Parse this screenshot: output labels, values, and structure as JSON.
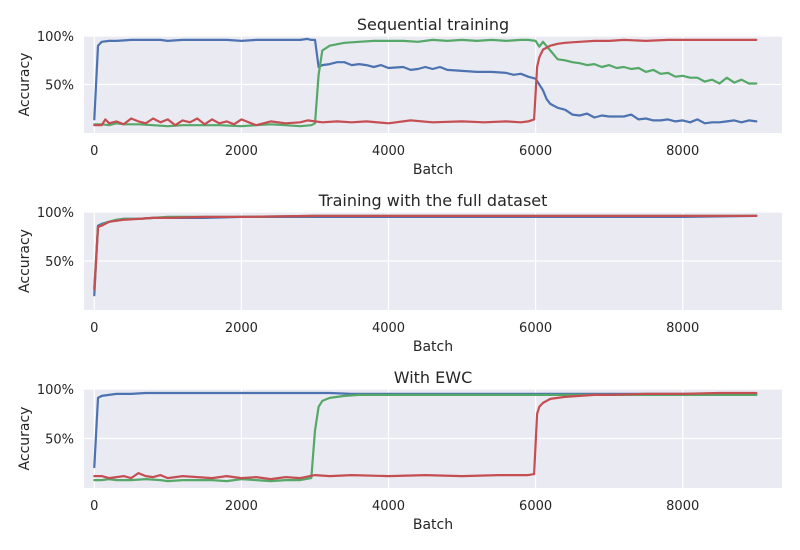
{
  "chart_data": [
    {
      "type": "line",
      "title": "Sequential training",
      "xlabel": "Batch",
      "ylabel": "Accuracy",
      "xlim": [
        -140,
        9350
      ],
      "ylim": [
        0,
        100
      ],
      "xticks": [
        0,
        2000,
        4000,
        6000,
        8000
      ],
      "yticks": [
        50,
        100
      ],
      "ytick_labels": [
        "50%",
        "100%"
      ],
      "grid": true,
      "series": [
        {
          "color": "#4c72b0",
          "x": [
            0,
            50,
            100,
            200,
            300,
            500,
            700,
            900,
            1000,
            1200,
            1500,
            1800,
            2000,
            2200,
            2500,
            2800,
            2900,
            2950,
            3000,
            3050,
            3100,
            3200,
            3300,
            3400,
            3500,
            3600,
            3700,
            3800,
            3900,
            4000,
            4200,
            4300,
            4400,
            4500,
            4600,
            4700,
            4800,
            5000,
            5200,
            5400,
            5600,
            5700,
            5800,
            5900,
            6000,
            6050,
            6100,
            6150,
            6200,
            6300,
            6400,
            6500,
            6600,
            6700,
            6800,
            6900,
            7000,
            7100,
            7200,
            7300,
            7400,
            7500,
            7600,
            7700,
            7800,
            7900,
            8000,
            8100,
            8200,
            8300,
            8400,
            8500,
            8600,
            8700,
            8800,
            8900,
            9000
          ],
          "y": [
            14,
            90,
            94,
            95,
            95,
            96,
            96,
            96,
            95,
            96,
            96,
            96,
            95,
            96,
            96,
            96,
            97,
            96,
            96,
            68,
            70,
            71,
            73,
            73,
            70,
            71,
            70,
            68,
            70,
            67,
            68,
            65,
            66,
            68,
            66,
            68,
            65,
            64,
            63,
            63,
            62,
            60,
            61,
            58,
            56,
            50,
            44,
            35,
            30,
            26,
            24,
            19,
            18,
            20,
            16,
            18,
            17,
            17,
            17,
            19,
            14,
            15,
            13,
            13,
            14,
            12,
            13,
            11,
            14,
            10,
            11,
            11,
            12,
            13,
            11,
            13,
            12
          ]
        },
        {
          "color": "#55a868",
          "x": [
            0,
            100,
            200,
            300,
            400,
            600,
            800,
            1000,
            1200,
            1500,
            1700,
            2000,
            2200,
            2400,
            2600,
            2800,
            2950,
            3000,
            3050,
            3100,
            3200,
            3400,
            3600,
            3800,
            4000,
            4200,
            4400,
            4600,
            4800,
            5000,
            5200,
            5400,
            5600,
            5800,
            5900,
            6000,
            6050,
            6100,
            6200,
            6300,
            6400,
            6500,
            6600,
            6700,
            6800,
            6900,
            7000,
            7100,
            7200,
            7300,
            7400,
            7500,
            7600,
            7700,
            7800,
            7900,
            8000,
            8100,
            8200,
            8300,
            8400,
            8500,
            8600,
            8700,
            8800,
            8900,
            9000
          ],
          "y": [
            9,
            9,
            8,
            10,
            9,
            9,
            8,
            7,
            8,
            8,
            8,
            7,
            8,
            9,
            8,
            7,
            8,
            10,
            60,
            85,
            90,
            93,
            94,
            95,
            95,
            95,
            94,
            96,
            95,
            96,
            95,
            96,
            95,
            96,
            96,
            95,
            89,
            94,
            85,
            76,
            75,
            73,
            72,
            70,
            71,
            68,
            70,
            67,
            68,
            66,
            67,
            63,
            65,
            61,
            62,
            58,
            59,
            57,
            57,
            53,
            55,
            51,
            57,
            52,
            55,
            51,
            51
          ]
        },
        {
          "color": "#c44e52",
          "x": [
            0,
            100,
            150,
            200,
            300,
            400,
            500,
            600,
            700,
            800,
            900,
            1000,
            1100,
            1200,
            1300,
            1400,
            1500,
            1600,
            1700,
            1800,
            1900,
            2000,
            2200,
            2400,
            2600,
            2800,
            2900,
            3000,
            3100,
            3300,
            3500,
            3700,
            4000,
            4300,
            4600,
            5000,
            5300,
            5600,
            5800,
            5900,
            5980,
            6020,
            6050,
            6100,
            6200,
            6300,
            6400,
            6600,
            6800,
            7000,
            7200,
            7500,
            7800,
            8000,
            8300,
            8600,
            9000
          ],
          "y": [
            8,
            8,
            14,
            10,
            12,
            9,
            15,
            12,
            10,
            15,
            11,
            14,
            8,
            13,
            11,
            15,
            9,
            14,
            10,
            12,
            9,
            14,
            8,
            12,
            10,
            11,
            13,
            12,
            11,
            12,
            11,
            12,
            10,
            13,
            11,
            12,
            11,
            12,
            11,
            12,
            14,
            68,
            78,
            86,
            90,
            92,
            93,
            94,
            95,
            95,
            96,
            95,
            96,
            96,
            96,
            96,
            96
          ]
        }
      ]
    },
    {
      "type": "line",
      "title": "Training with the full dataset",
      "xlabel": "Batch",
      "ylabel": "Accuracy",
      "xlim": [
        -140,
        9350
      ],
      "ylim": [
        0,
        100
      ],
      "xticks": [
        0,
        2000,
        4000,
        6000,
        8000
      ],
      "yticks": [
        50,
        100
      ],
      "ytick_labels": [
        "50%",
        "100%"
      ],
      "grid": true,
      "series": [
        {
          "color": "#4c72b0",
          "x": [
            0,
            50,
            100,
            200,
            300,
            400,
            600,
            800,
            1000,
            1500,
            2000,
            3000,
            4000,
            5000,
            6000,
            7000,
            8000,
            9000
          ],
          "y": [
            15,
            86,
            88,
            90,
            92,
            93,
            93,
            94,
            94,
            94,
            95,
            95,
            95,
            95,
            95,
            95,
            95,
            96
          ]
        },
        {
          "color": "#55a868",
          "x": [
            0,
            50,
            100,
            200,
            300,
            400,
            600,
            800,
            1000,
            1500,
            2000,
            3000,
            4000,
            5000,
            6000,
            7000,
            8000,
            9000
          ],
          "y": [
            22,
            84,
            87,
            90,
            92,
            93,
            93,
            94,
            95,
            95,
            95,
            96,
            96,
            96,
            96,
            96,
            96,
            96
          ]
        },
        {
          "color": "#c44e52",
          "x": [
            0,
            50,
            100,
            200,
            300,
            400,
            600,
            800,
            1000,
            1500,
            2000,
            3000,
            4000,
            5000,
            6000,
            7000,
            8000,
            9000
          ],
          "y": [
            21,
            85,
            86,
            90,
            91,
            92,
            93,
            94,
            94,
            95,
            95,
            96,
            96,
            96,
            96,
            96,
            96,
            96
          ]
        }
      ]
    },
    {
      "type": "line",
      "title": "With EWC",
      "xlabel": "Batch",
      "ylabel": "Accuracy",
      "xlim": [
        -140,
        9350
      ],
      "ylim": [
        0,
        100
      ],
      "xticks": [
        0,
        2000,
        4000,
        6000,
        8000
      ],
      "yticks": [
        50,
        100
      ],
      "ytick_labels": [
        "50%",
        "100%"
      ],
      "grid": true,
      "series": [
        {
          "color": "#4c72b0",
          "x": [
            0,
            50,
            100,
            200,
            300,
            500,
            700,
            900,
            1200,
            1500,
            1800,
            2000,
            2300,
            2600,
            2900,
            3000,
            3200,
            3500,
            4000,
            4500,
            5000,
            5500,
            6000,
            6500,
            7000,
            7500,
            8000,
            8500,
            9000
          ],
          "y": [
            21,
            91,
            93,
            94,
            95,
            95,
            96,
            96,
            96,
            96,
            96,
            96,
            96,
            96,
            96,
            96,
            96,
            95,
            95,
            95,
            95,
            95,
            95,
            95,
            95,
            95,
            95,
            95,
            95
          ]
        },
        {
          "color": "#55a868",
          "x": [
            0,
            100,
            200,
            300,
            500,
            700,
            900,
            1000,
            1200,
            1400,
            1600,
            1800,
            2000,
            2200,
            2400,
            2600,
            2800,
            2950,
            3000,
            3050,
            3100,
            3200,
            3400,
            3600,
            3800,
            4000,
            4500,
            5000,
            5500,
            6000,
            6500,
            7000,
            7500,
            8000,
            8500,
            9000
          ],
          "y": [
            8,
            8,
            9,
            8,
            8,
            9,
            8,
            7,
            8,
            8,
            8,
            7,
            9,
            8,
            7,
            8,
            8,
            10,
            58,
            82,
            88,
            91,
            93,
            94,
            94,
            94,
            94,
            94,
            94,
            94,
            94,
            94,
            94,
            94,
            94,
            94
          ]
        },
        {
          "color": "#c44e52",
          "x": [
            0,
            100,
            200,
            300,
            400,
            500,
            600,
            700,
            800,
            900,
            1000,
            1200,
            1400,
            1600,
            1800,
            2000,
            2200,
            2400,
            2600,
            2800,
            3000,
            3200,
            3500,
            4000,
            4500,
            5000,
            5500,
            5900,
            5980,
            6020,
            6050,
            6100,
            6200,
            6400,
            6600,
            6800,
            7000,
            7500,
            8000,
            8500,
            9000
          ],
          "y": [
            12,
            12,
            10,
            11,
            12,
            10,
            15,
            12,
            11,
            13,
            10,
            12,
            11,
            10,
            12,
            10,
            11,
            9,
            11,
            10,
            13,
            12,
            13,
            12,
            13,
            12,
            13,
            13,
            14,
            75,
            82,
            86,
            90,
            92,
            93,
            94,
            94,
            95,
            95,
            96,
            96
          ]
        }
      ]
    }
  ]
}
